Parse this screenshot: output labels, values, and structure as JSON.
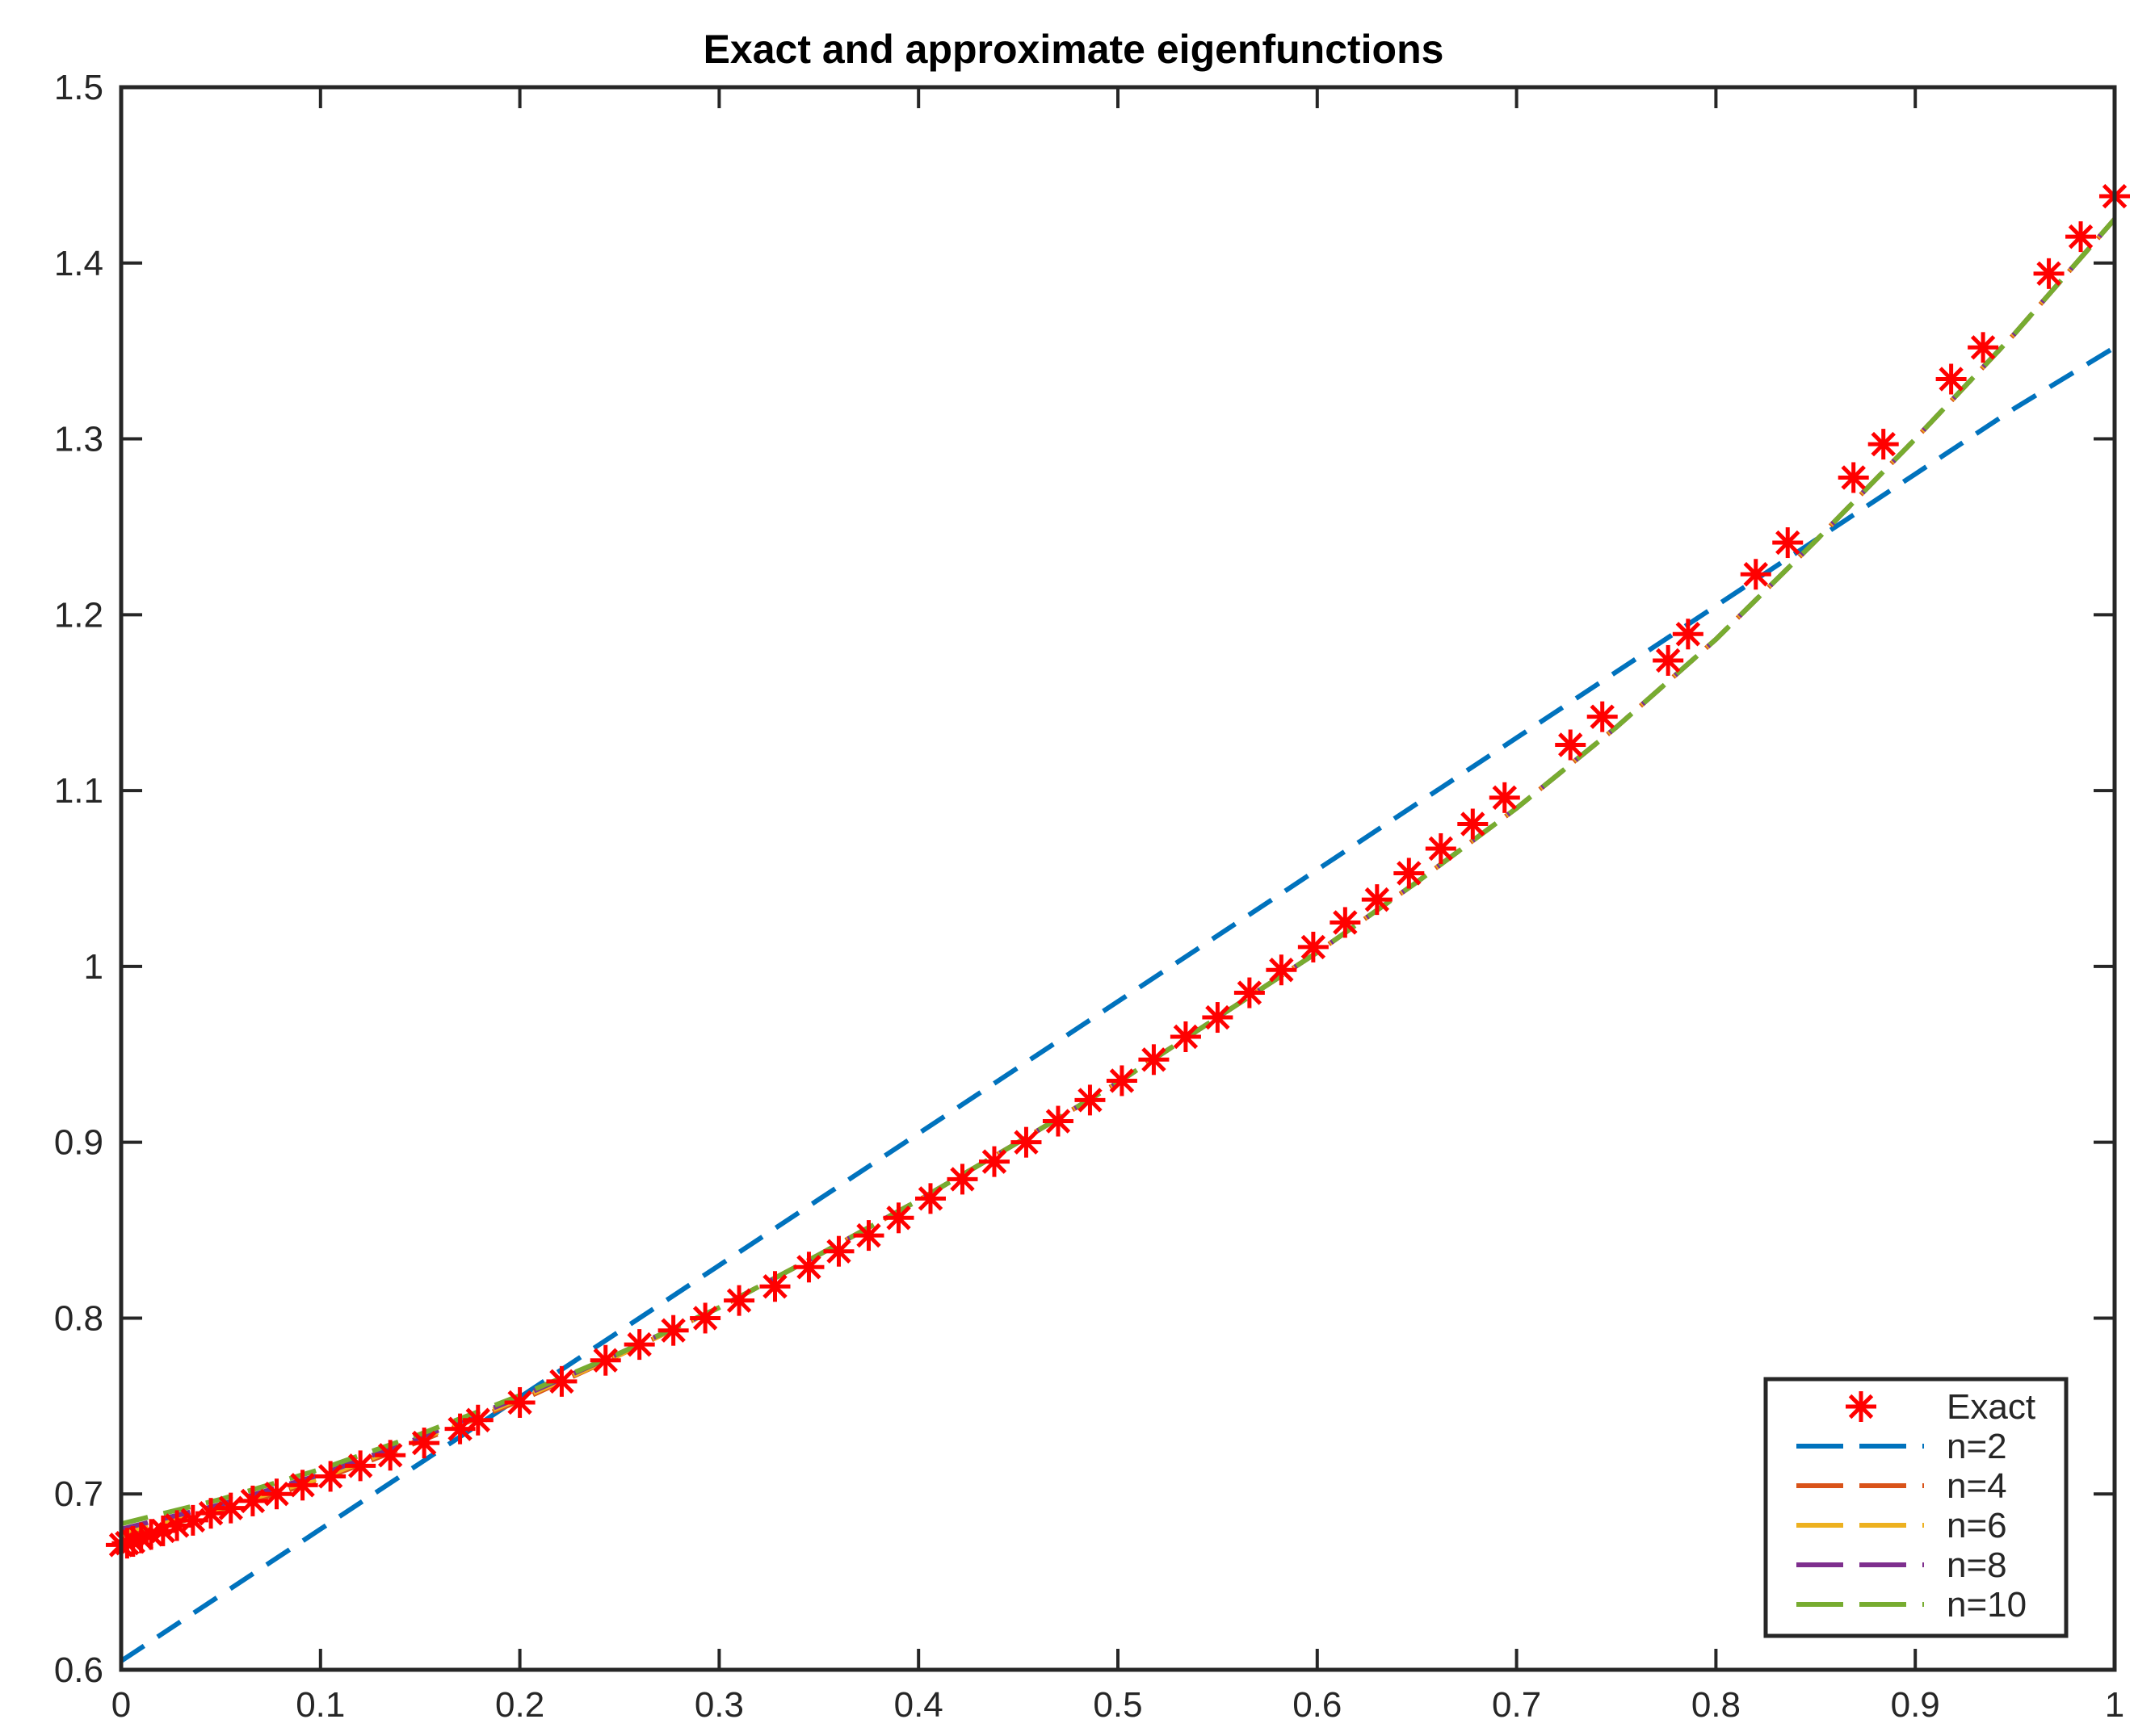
{
  "chart_data": {
    "type": "line",
    "title": "Exact and approximate eigenfunctions",
    "xlabel": "",
    "ylabel": "",
    "xlim": [
      0,
      1
    ],
    "ylim": [
      0.6,
      1.5
    ],
    "x_ticks": [
      0,
      0.1,
      0.2,
      0.3,
      0.4,
      0.5,
      0.6,
      0.7,
      0.8,
      0.9,
      1
    ],
    "x_tick_labels": [
      "0",
      "0.1",
      "0.2",
      "0.3",
      "0.4",
      "0.5",
      "0.6",
      "0.7",
      "0.8",
      "0.9",
      "1"
    ],
    "y_ticks": [
      0.6,
      0.7,
      0.8,
      0.9,
      1.0,
      1.1,
      1.2,
      1.3,
      1.4,
      1.5
    ],
    "y_tick_labels": [
      "0.6",
      "0.7",
      "0.8",
      "0.9",
      "1",
      "1.1",
      "1.2",
      "1.3",
      "1.4",
      "1.5"
    ],
    "grid": false,
    "legend_position": "bottom-right",
    "exact": {
      "name": "Exact",
      "color": "#ff0000",
      "marker": "asterisk",
      "x": [
        0.0,
        0.003,
        0.006,
        0.01,
        0.015,
        0.021,
        0.028,
        0.036,
        0.045,
        0.055,
        0.066,
        0.078,
        0.091,
        0.105,
        0.12,
        0.135,
        0.152,
        0.17,
        0.179,
        0.2,
        0.221,
        0.243,
        0.26,
        0.277,
        0.293,
        0.31,
        0.328,
        0.345,
        0.36,
        0.375,
        0.39,
        0.406,
        0.422,
        0.438,
        0.454,
        0.47,
        0.486,
        0.502,
        0.518,
        0.534,
        0.55,
        0.566,
        0.582,
        0.598,
        0.614,
        0.63,
        0.646,
        0.662,
        0.678,
        0.694,
        0.727,
        0.743,
        0.776,
        0.786,
        0.82,
        0.836,
        0.869,
        0.884,
        0.918,
        0.934,
        0.967,
        0.983,
        1.0
      ],
      "y": [
        0.671,
        0.672,
        0.673,
        0.675,
        0.677,
        0.679,
        0.682,
        0.685,
        0.689,
        0.692,
        0.696,
        0.7,
        0.705,
        0.71,
        0.716,
        0.722,
        0.729,
        0.737,
        0.742,
        0.752,
        0.764,
        0.776,
        0.785,
        0.793,
        0.8,
        0.81,
        0.818,
        0.829,
        0.838,
        0.847,
        0.857,
        0.868,
        0.879,
        0.889,
        0.9,
        0.912,
        0.924,
        0.935,
        0.947,
        0.96,
        0.971,
        0.985,
        0.998,
        1.011,
        1.025,
        1.038,
        1.053,
        1.067,
        1.081,
        1.096,
        1.126,
        1.142,
        1.174,
        1.189,
        1.223,
        1.241,
        1.278,
        1.297,
        1.334,
        1.352,
        1.394,
        1.415,
        1.438
      ]
    },
    "x": [
      0,
      0.05,
      0.1,
      0.15,
      0.2,
      0.25,
      0.3,
      0.35,
      0.4,
      0.45,
      0.5,
      0.55,
      0.6,
      0.65,
      0.7,
      0.75,
      0.8,
      0.85,
      0.9,
      0.95,
      1.0
    ],
    "series": [
      {
        "name": "n=2",
        "color": "#0072BD",
        "values": [
          0.605,
          0.6425,
          0.68,
          0.7175,
          0.755,
          0.7925,
          0.83,
          0.8675,
          0.905,
          0.9425,
          0.98,
          1.0175,
          1.055,
          1.0925,
          1.13,
          1.1675,
          1.205,
          1.2425,
          1.28,
          1.3175,
          1.352
        ]
      },
      {
        "name": "n=4",
        "color": "#D95319",
        "values": [
          0.676,
          0.69,
          0.708,
          0.73,
          0.753,
          0.779,
          0.806,
          0.836,
          0.867,
          0.9,
          0.934,
          0.971,
          1.008,
          1.048,
          1.09,
          1.136,
          1.186,
          1.242,
          1.3,
          1.36,
          1.425
        ]
      },
      {
        "name": "n=6",
        "color": "#EDB120",
        "values": [
          0.678,
          0.692,
          0.709,
          0.731,
          0.754,
          0.779,
          0.806,
          0.836,
          0.867,
          0.9,
          0.934,
          0.971,
          1.008,
          1.048,
          1.09,
          1.136,
          1.186,
          1.242,
          1.3,
          1.36,
          1.425
        ]
      },
      {
        "name": "n=8",
        "color": "#7E2F8E",
        "values": [
          0.68,
          0.694,
          0.711,
          0.732,
          0.755,
          0.78,
          0.806,
          0.836,
          0.867,
          0.9,
          0.934,
          0.971,
          1.008,
          1.048,
          1.09,
          1.136,
          1.186,
          1.242,
          1.3,
          1.36,
          1.425
        ]
      },
      {
        "name": "n=10",
        "color": "#77AC30",
        "values": [
          0.683,
          0.697,
          0.714,
          0.734,
          0.756,
          0.78,
          0.806,
          0.836,
          0.867,
          0.9,
          0.934,
          0.971,
          1.008,
          1.048,
          1.09,
          1.136,
          1.186,
          1.242,
          1.3,
          1.36,
          1.425
        ]
      }
    ]
  }
}
